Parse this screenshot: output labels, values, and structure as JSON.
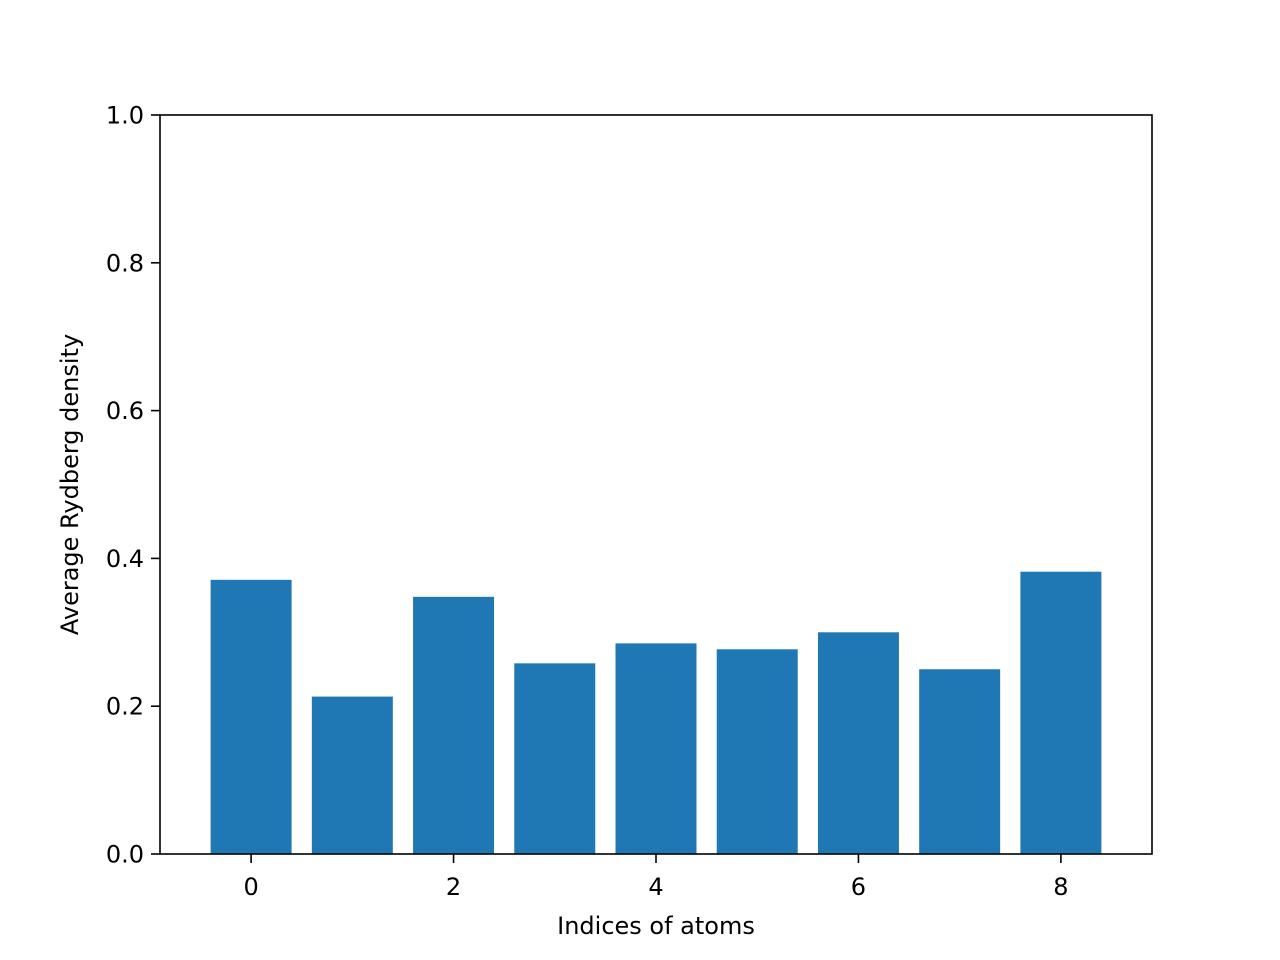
{
  "chart_data": {
    "type": "bar",
    "x": [
      0,
      1,
      2,
      3,
      4,
      5,
      6,
      7,
      8
    ],
    "values": [
      0.371,
      0.213,
      0.348,
      0.258,
      0.285,
      0.277,
      0.3,
      0.25,
      0.382
    ],
    "xlabel": "Indices of atoms",
    "ylabel": "Average Rydberg density",
    "xlim": [
      -0.9,
      8.9
    ],
    "ylim": [
      0,
      1.0
    ],
    "xticks": [
      0,
      2,
      4,
      6,
      8
    ],
    "xtick_labels": [
      "0",
      "2",
      "4",
      "6",
      "8"
    ],
    "yticks": [
      0,
      0.2,
      0.4,
      0.6,
      0.8,
      1.0
    ],
    "ytick_labels": [
      "0.0",
      "0.2",
      "0.4",
      "0.6",
      "0.8",
      "1.0"
    ],
    "grid": false,
    "bar_color": "#1f77b4"
  }
}
